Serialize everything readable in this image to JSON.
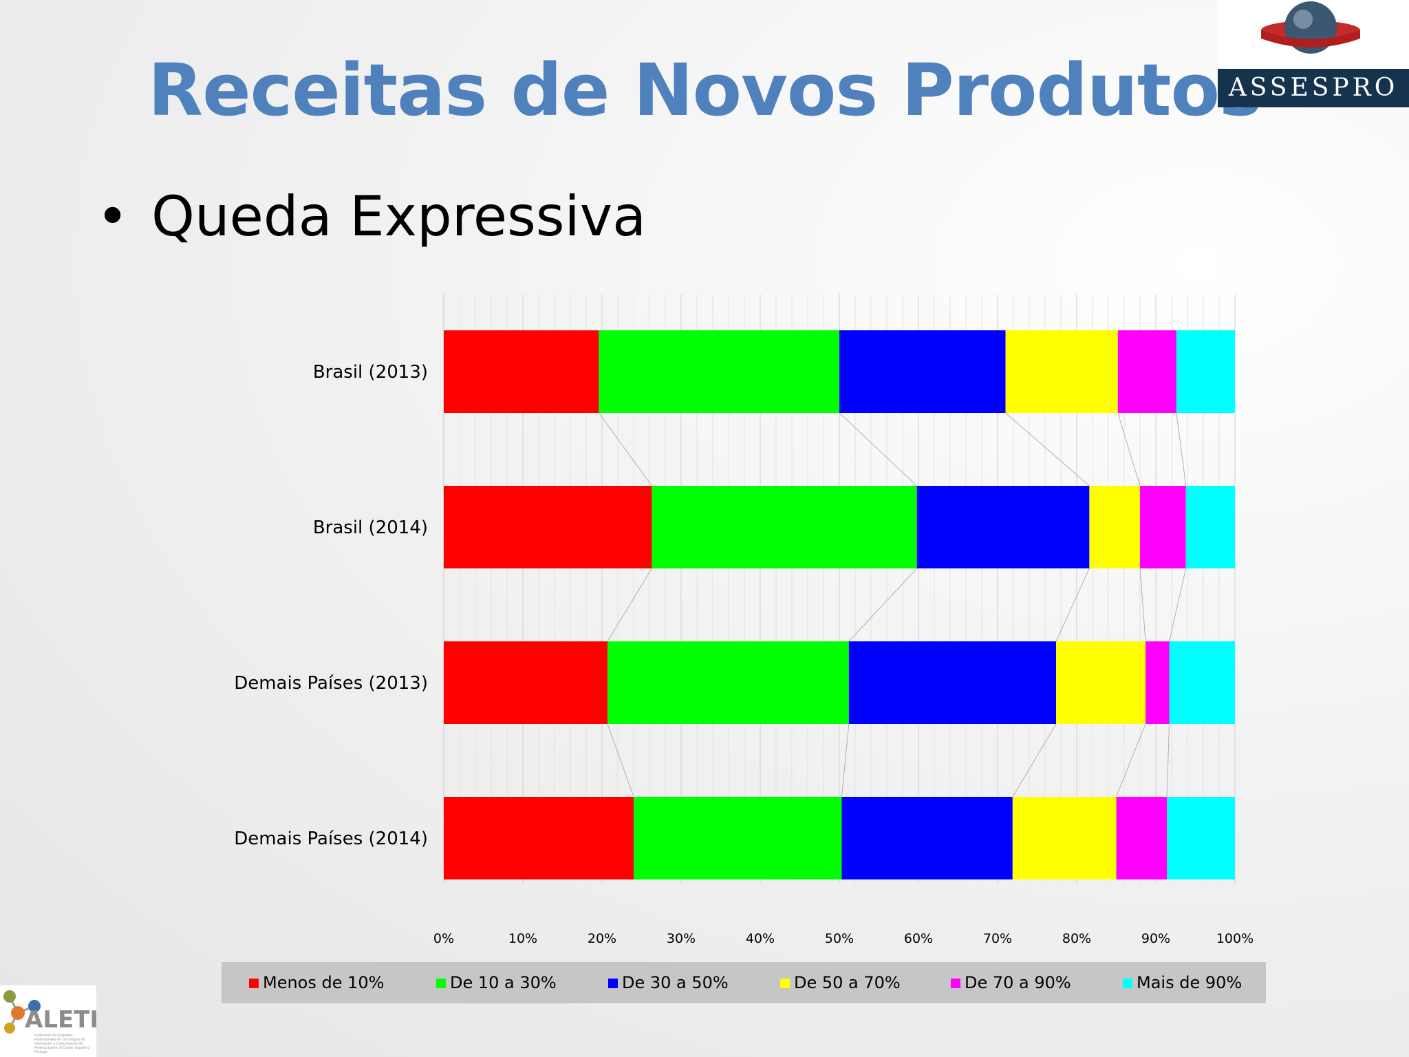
{
  "slide": {
    "title": "Receitas de Novos Produtos",
    "bullet": "Queda Expressiva"
  },
  "logos": {
    "assespro": "ASSESPRO",
    "aleti": "ALETI",
    "aleti_subtitle": "Federación de Entidades Empresariales de Tecnologías de Información y Comunicación de América Latina, el Caribe, España y Portugal"
  },
  "colors": {
    "title": "#4f81bd",
    "series": [
      "#ff0000",
      "#00ff00",
      "#0000ff",
      "#ffff00",
      "#ff00ff",
      "#00ffff"
    ]
  },
  "chart_data": {
    "type": "bar",
    "orientation": "horizontal",
    "stacked": "percent",
    "categories": [
      "Brasil (2013)",
      "Brasil (2014)",
      "Demais Países (2013)",
      "Demais Países (2014)"
    ],
    "series": [
      {
        "name": "Menos de 10%",
        "values": [
          19.6,
          26.3,
          20.7,
          24.0
        ]
      },
      {
        "name": "De 10 a 30%",
        "values": [
          30.4,
          33.5,
          30.5,
          26.3
        ]
      },
      {
        "name": "De 30 a 50%",
        "values": [
          21.0,
          21.8,
          26.2,
          21.6
        ]
      },
      {
        "name": "De 50 a 70%",
        "values": [
          14.2,
          6.4,
          11.3,
          13.1
        ]
      },
      {
        "name": "De 70 a 90%",
        "values": [
          7.4,
          5.8,
          3.0,
          6.4
        ]
      },
      {
        "name": "Mais de 90%",
        "values": [
          7.4,
          6.2,
          8.3,
          8.6
        ]
      }
    ],
    "x_ticks": [
      "0%",
      "10%",
      "20%",
      "30%",
      "40%",
      "50%",
      "60%",
      "70%",
      "80%",
      "90%",
      "100%"
    ],
    "xlim": [
      0,
      100
    ],
    "grid": true,
    "series_lines": true,
    "legend": "bottom"
  }
}
